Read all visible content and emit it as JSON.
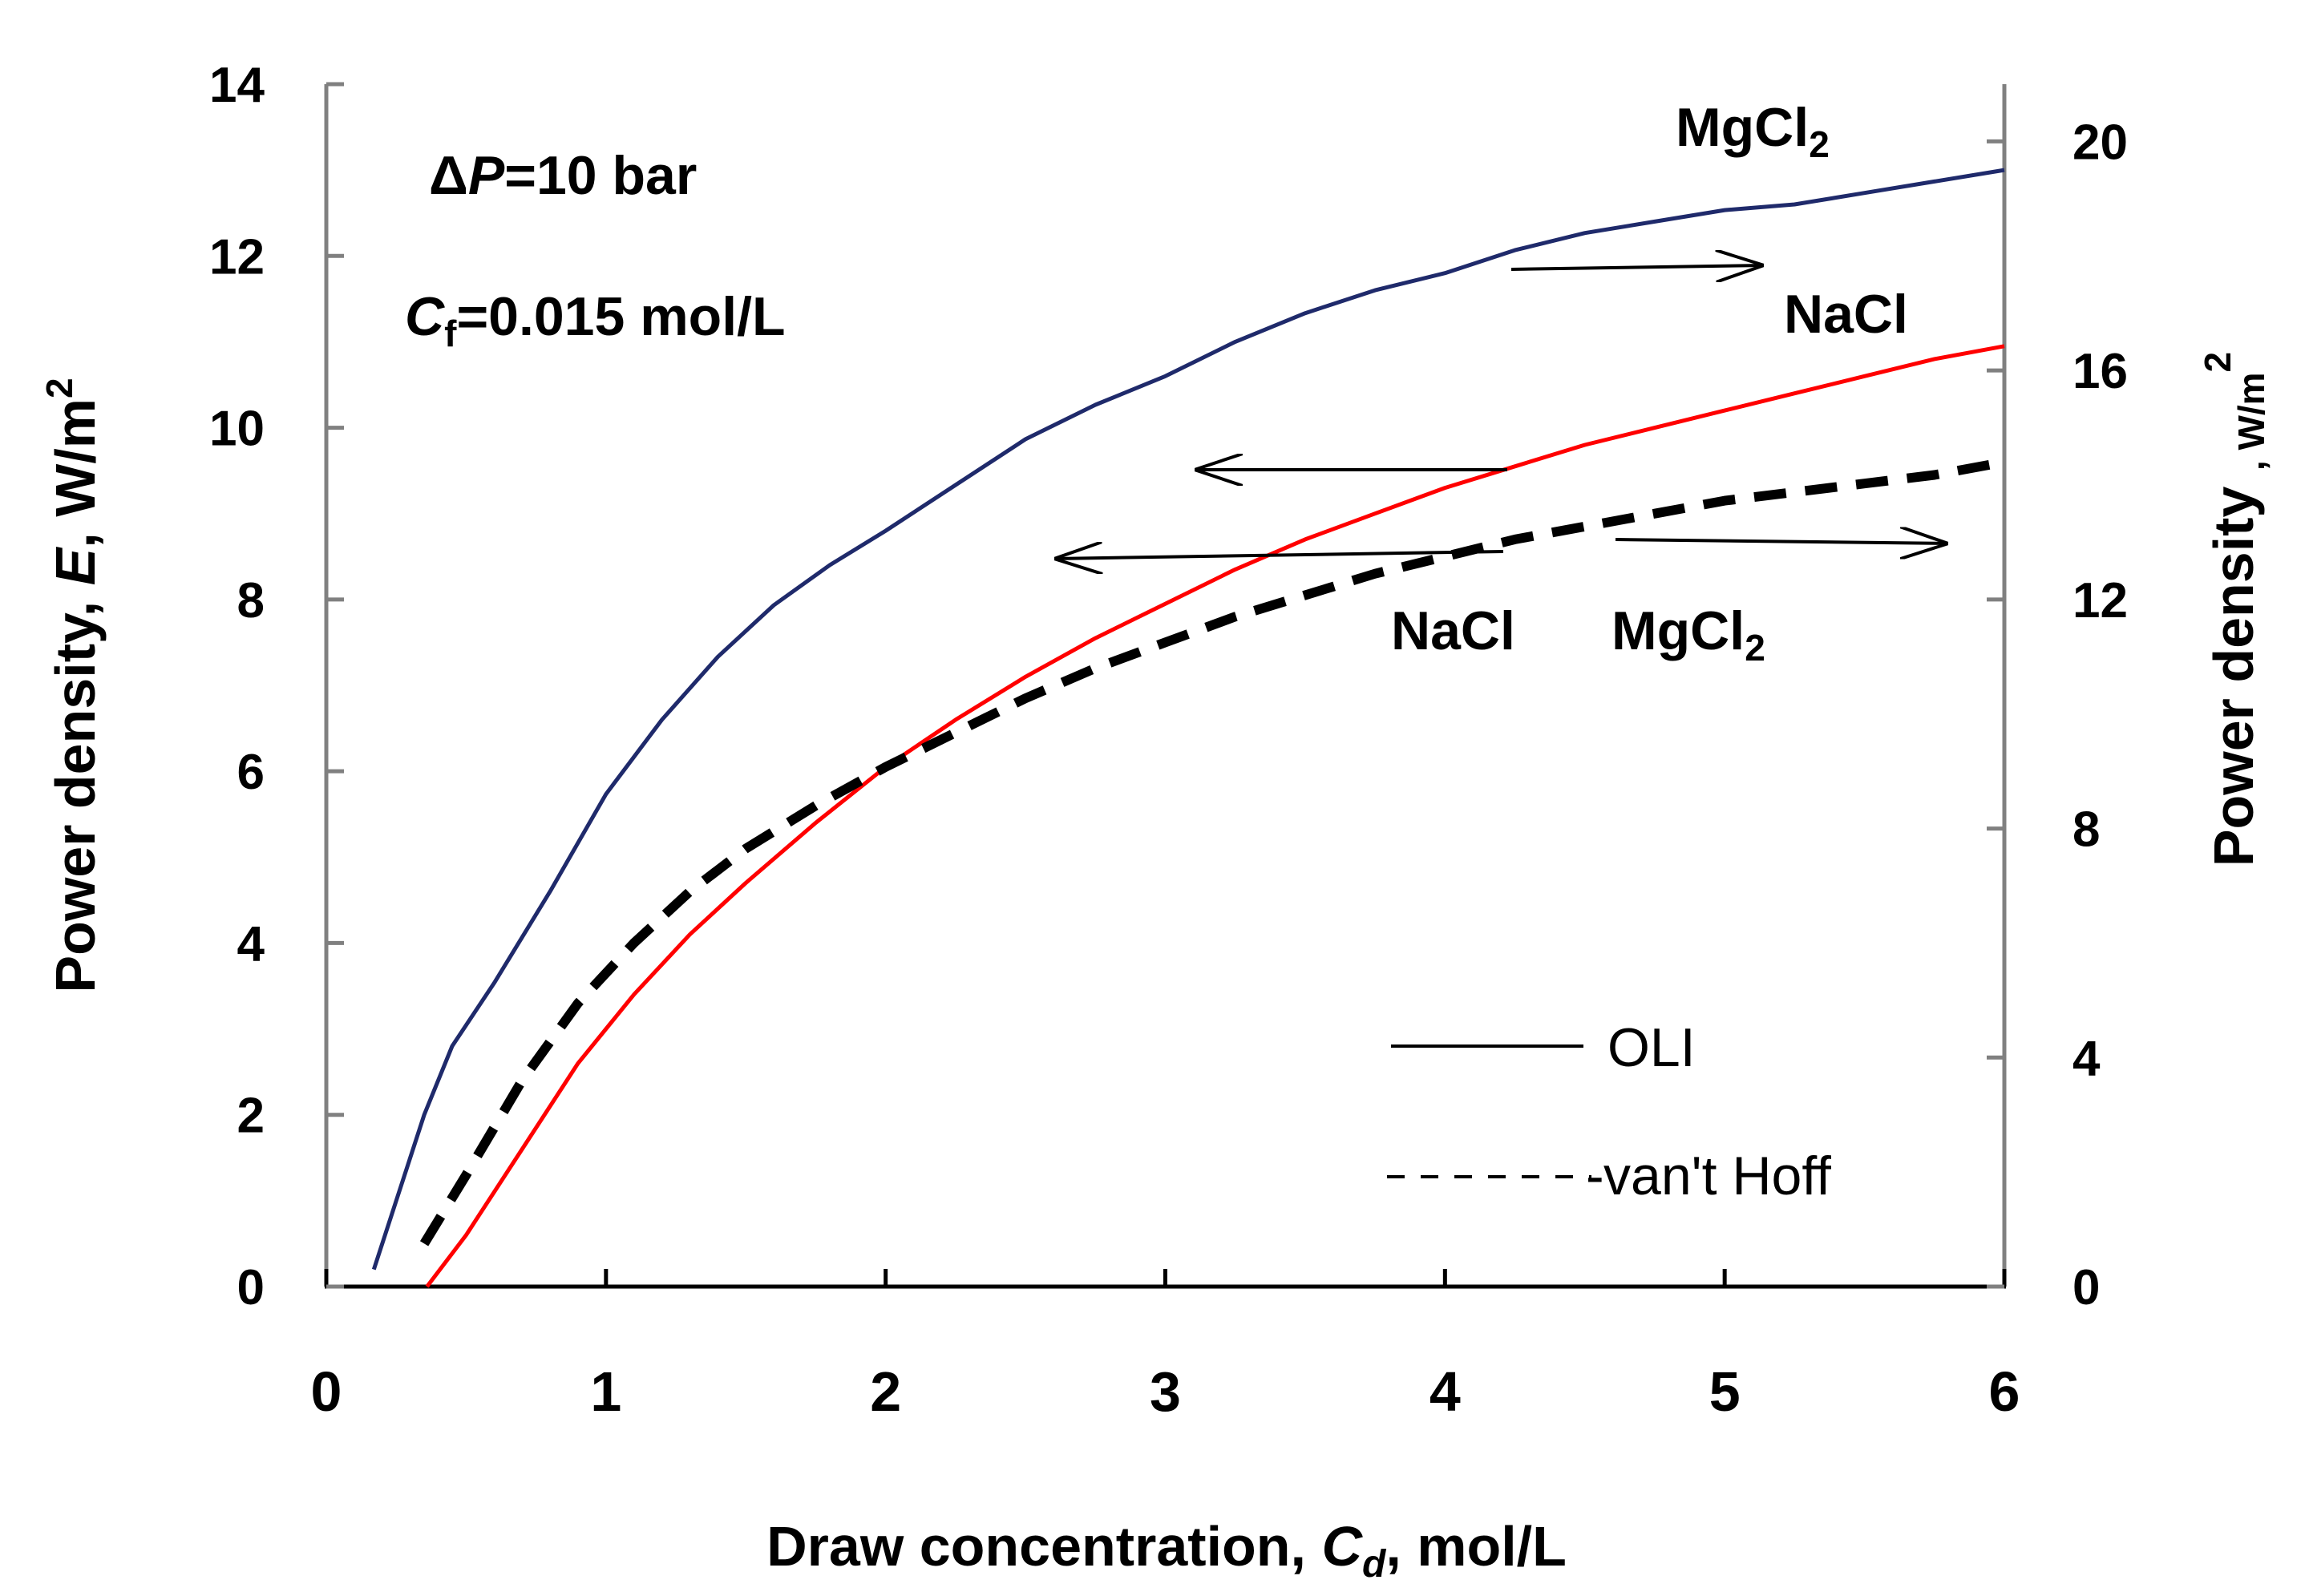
{
  "chart_data": {
    "type": "line",
    "xlabel": {
      "pre": "Draw concentration, ",
      "var": "C",
      "sub": "d",
      "post": ", mol/L"
    },
    "ylabel_left": {
      "pre": "Power density, ",
      "var": "E",
      "post": ", W/m",
      "sup": "2"
    },
    "ylabel_right": {
      "pre": "Power density",
      "mid": " ",
      "post": ", W/m",
      "sup": "2"
    },
    "xlim": [
      0,
      6
    ],
    "ylim_left": [
      0,
      14
    ],
    "ylim_right": [
      0,
      21
    ],
    "x_ticks": [
      "0",
      "1",
      "2",
      "3",
      "4",
      "5",
      "6"
    ],
    "y_left_ticks": [
      "0",
      "2",
      "4",
      "6",
      "8",
      "10",
      "12",
      "14"
    ],
    "y_right_ticks": [
      "0",
      "4",
      "8",
      "12",
      "16",
      "20"
    ],
    "grid": false,
    "series": [
      {
        "name": "MgCl2",
        "method": "OLI",
        "axis": "right",
        "color": "#1f2a6b",
        "style": "solid",
        "x": [
          0.17,
          0.25,
          0.35,
          0.45,
          0.6,
          0.8,
          1.0,
          1.2,
          1.4,
          1.6,
          1.8,
          2.0,
          2.25,
          2.5,
          2.75,
          3.0,
          3.25,
          3.5,
          3.75,
          4.0,
          4.25,
          4.5,
          4.75,
          5.0,
          5.25,
          5.5,
          5.75,
          6.0
        ],
        "y": [
          0.3,
          1.5,
          3.0,
          4.2,
          5.3,
          6.9,
          8.6,
          9.9,
          11.0,
          11.9,
          12.6,
          13.2,
          14.0,
          14.8,
          15.4,
          15.9,
          16.5,
          17.0,
          17.4,
          17.7,
          18.1,
          18.4,
          18.6,
          18.8,
          18.9,
          19.1,
          19.3,
          19.5
        ]
      },
      {
        "name": "NaCl",
        "method": "OLI",
        "axis": "left",
        "color": "#ff0000",
        "style": "solid",
        "x": [
          0.36,
          0.5,
          0.7,
          0.9,
          1.1,
          1.3,
          1.5,
          1.75,
          2.0,
          2.25,
          2.5,
          2.75,
          3.0,
          3.25,
          3.5,
          3.75,
          4.0,
          4.25,
          4.5,
          4.75,
          5.0,
          5.25,
          5.5,
          5.75,
          6.0
        ],
        "y": [
          0.0,
          0.6,
          1.6,
          2.6,
          3.4,
          4.1,
          4.7,
          5.4,
          6.05,
          6.6,
          7.1,
          7.55,
          7.95,
          8.35,
          8.7,
          9.0,
          9.3,
          9.55,
          9.8,
          10.0,
          10.2,
          10.4,
          10.6,
          10.8,
          10.95
        ]
      },
      {
        "name": "NaCl",
        "method": "van't Hoff",
        "axis": "left",
        "color": "#000000",
        "style": "dashed",
        "x": [
          0.35,
          0.5,
          0.7,
          0.9,
          1.1,
          1.3,
          1.5,
          1.75,
          2.0,
          2.25,
          2.5,
          2.75,
          3.0,
          3.25,
          3.5,
          3.75,
          4.0,
          4.25,
          4.5,
          4.75,
          5.0,
          5.25,
          5.5,
          5.75,
          6.0
        ],
        "y": [
          0.5,
          1.3,
          2.4,
          3.3,
          4.0,
          4.6,
          5.1,
          5.6,
          6.05,
          6.45,
          6.85,
          7.2,
          7.5,
          7.8,
          8.05,
          8.3,
          8.5,
          8.7,
          8.85,
          9.0,
          9.15,
          9.25,
          9.35,
          9.45,
          9.6
        ]
      }
    ],
    "annotations": {
      "delta_p": {
        "delta": "Δ",
        "var": "P",
        "rest": "=10 bar"
      },
      "cf": {
        "var": "C",
        "sub": "f",
        "rest": "=0.015 mol/L"
      },
      "label_mgcl2_top": {
        "base": "MgCl",
        "sub": "2"
      },
      "label_nacl_right": "NaCl",
      "label_nacl_bottom": "NaCl",
      "label_mgcl2_bottom": {
        "base": "MgCl",
        "sub": "2"
      }
    },
    "legend": [
      {
        "label": "OLI",
        "style": "solid"
      },
      {
        "label": "van't Hoff",
        "style": "dashed"
      }
    ],
    "legend_position": "lower-right"
  }
}
